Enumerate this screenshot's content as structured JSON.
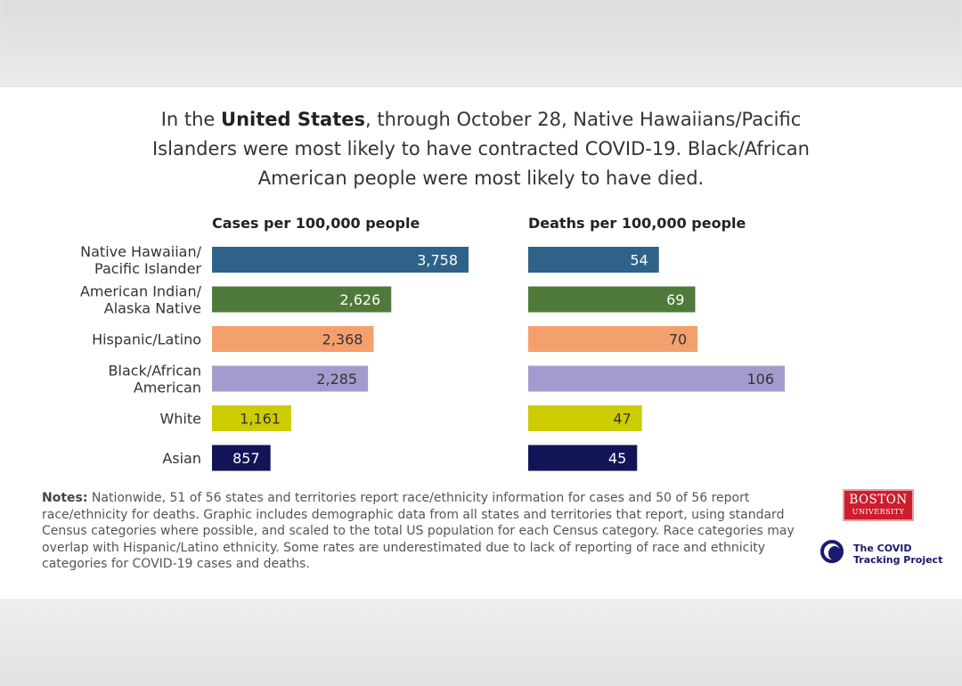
{
  "headline": {
    "pre": "In the ",
    "bold": "United States",
    "post": ", through October 28, Native Hawaiians/Pacific Islanders were most likely to have contracted COVID-19. Black/African American people were most likely to have died."
  },
  "notes": {
    "label": "Notes:",
    "text": " Nationwide, 51 of 56 states and territories report race/ethnicity information for cases and 50 of 56 report race/ethnicity for deaths. Graphic includes demographic data from all states and territories that report, using standard Census categories where possible, and scaled to the total US population for each Census category. Race categories may overlap with Hispanic/Latino ethnicity. Some rates are underestimated due to lack of reporting of race and ethnicity categories for COVID-19 cases and deaths."
  },
  "logos": {
    "bu_line1": "BOSTON",
    "bu_line2": "UNIVERSITY",
    "ctp_line1": "The COVID",
    "ctp_line2": "Tracking Project"
  },
  "chart_data": [
    {
      "type": "bar",
      "orientation": "horizontal",
      "title": "Cases per 100,000 people",
      "categories": [
        [
          "Native Hawaiian/",
          "Pacific Islander"
        ],
        [
          "American Indian/",
          "Alaska Native"
        ],
        [
          "Hispanic/Latino"
        ],
        [
          "Black/African",
          "American"
        ],
        [
          "White"
        ],
        [
          "Asian"
        ]
      ],
      "values": [
        3758,
        2626,
        2368,
        2285,
        1161,
        857
      ],
      "value_labels": [
        "3,758",
        "2,626",
        "2,368",
        "2,285",
        "1,161",
        "857"
      ],
      "xlim": [
        0,
        4000
      ]
    },
    {
      "type": "bar",
      "orientation": "horizontal",
      "title": "Deaths per 100,000 people",
      "categories": [
        [
          "Native Hawaiian/",
          "Pacific Islander"
        ],
        [
          "American Indian/",
          "Alaska Native"
        ],
        [
          "Hispanic/Latino"
        ],
        [
          "Black/African",
          "American"
        ],
        [
          "White"
        ],
        [
          "Asian"
        ]
      ],
      "values": [
        54,
        69,
        70,
        106,
        47,
        45
      ],
      "value_labels": [
        "54",
        "69",
        "70",
        "106",
        "47",
        "45"
      ],
      "xlim": [
        0,
        120
      ]
    }
  ],
  "colors": [
    "#2e6289",
    "#4f7a3a",
    "#f4a06e",
    "#a39bce",
    "#cccc00",
    "#121458"
  ]
}
